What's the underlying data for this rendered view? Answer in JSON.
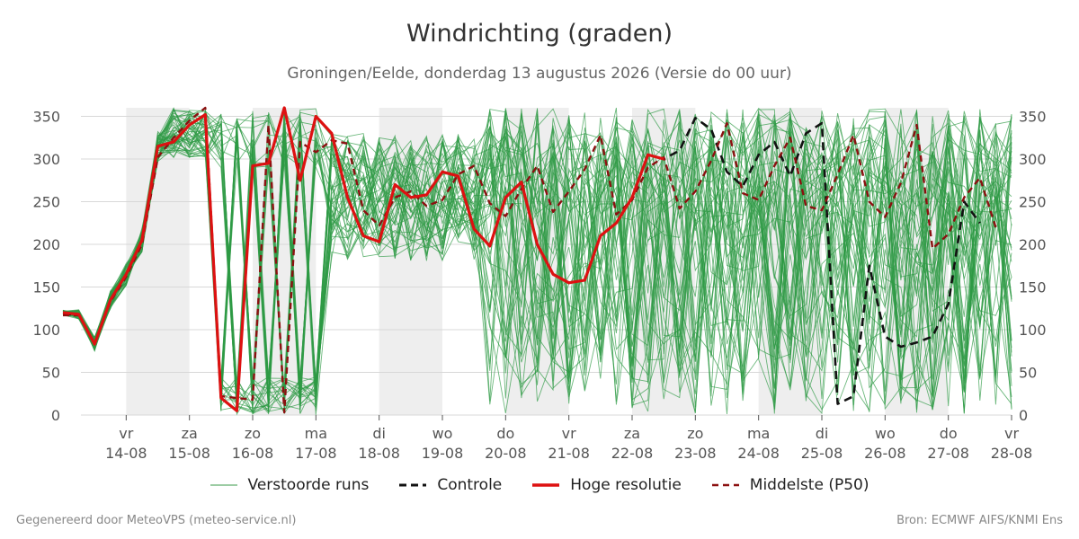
{
  "title": "Windrichting (graden)",
  "subtitle": "Groningen/Eelde, donderdag 13 augustus 2026 (Versie do 00 uur)",
  "footer_left": "Gegenereerd door MeteoVPS (meteo-service.nl)",
  "footer_right": "Bron: ECMWF AIFS/KNMI Ens",
  "legend": [
    {
      "label": "Verstoorde runs",
      "style": "thin-solid",
      "color": "#3a9a48"
    },
    {
      "label": "Controle",
      "style": "dashed",
      "color": "#111111"
    },
    {
      "label": "Hoge resolutie",
      "style": "thick-solid",
      "color": "#dd1111"
    },
    {
      "label": "Middelste (P50)",
      "style": "dashed",
      "color": "#8b1010"
    }
  ],
  "chart_data": {
    "type": "line",
    "xlabel": "",
    "ylabel": "",
    "ylim": [
      0,
      360
    ],
    "yticks": [
      0,
      50,
      100,
      150,
      200,
      250,
      300,
      350
    ],
    "grid": true,
    "legend_position": "bottom",
    "x_unit": "days from start of 13-08",
    "xlim": [
      0.0,
      15.0
    ],
    "day_ticks": [
      {
        "x": 1,
        "day": "vr",
        "date": "14-08"
      },
      {
        "x": 2,
        "day": "za",
        "date": "15-08"
      },
      {
        "x": 3,
        "day": "zo",
        "date": "16-08"
      },
      {
        "x": 4,
        "day": "ma",
        "date": "17-08"
      },
      {
        "x": 5,
        "day": "di",
        "date": "18-08"
      },
      {
        "x": 6,
        "day": "wo",
        "date": "19-08"
      },
      {
        "x": 7,
        "day": "do",
        "date": "20-08"
      },
      {
        "x": 8,
        "day": "vr",
        "date": "21-08"
      },
      {
        "x": 9,
        "day": "za",
        "date": "22-08"
      },
      {
        "x": 10,
        "day": "zo",
        "date": "23-08"
      },
      {
        "x": 11,
        "day": "ma",
        "date": "24-08"
      },
      {
        "x": 12,
        "day": "di",
        "date": "25-08"
      },
      {
        "x": 13,
        "day": "wo",
        "date": "26-08"
      },
      {
        "x": 14,
        "day": "do",
        "date": "27-08"
      },
      {
        "x": 15,
        "day": "vr",
        "date": "28-08"
      }
    ],
    "shaded_bands": [
      [
        1,
        2
      ],
      [
        3,
        4
      ],
      [
        5,
        6
      ],
      [
        7,
        8
      ],
      [
        9,
        10
      ],
      [
        11,
        12
      ],
      [
        13,
        14
      ]
    ],
    "series": [
      {
        "name": "Hoge resolutie",
        "color": "#dd1111",
        "points": [
          [
            0.0,
            120
          ],
          [
            0.25,
            118
          ],
          [
            0.5,
            83
          ],
          [
            0.75,
            135
          ],
          [
            1.0,
            165
          ],
          [
            1.25,
            205
          ],
          [
            1.5,
            315
          ],
          [
            1.75,
            320
          ],
          [
            2.0,
            340
          ],
          [
            2.25,
            352
          ],
          [
            2.5,
            20
          ],
          [
            2.75,
            5
          ],
          [
            3.0,
            292
          ],
          [
            3.25,
            295
          ],
          [
            3.5,
            360
          ],
          [
            3.75,
            275
          ],
          [
            4.0,
            350
          ],
          [
            4.25,
            330
          ],
          [
            4.5,
            255
          ],
          [
            4.75,
            210
          ],
          [
            5.0,
            203
          ],
          [
            5.25,
            270
          ],
          [
            5.5,
            255
          ],
          [
            5.75,
            258
          ],
          [
            6.0,
            285
          ],
          [
            6.25,
            280
          ],
          [
            6.5,
            218
          ],
          [
            6.75,
            198
          ],
          [
            7.0,
            255
          ],
          [
            7.25,
            273
          ],
          [
            7.5,
            200
          ],
          [
            7.75,
            165
          ],
          [
            8.0,
            155
          ],
          [
            8.25,
            158
          ],
          [
            8.5,
            210
          ],
          [
            8.75,
            225
          ],
          [
            9.0,
            255
          ],
          [
            9.25,
            305
          ],
          [
            9.5,
            300
          ]
        ]
      },
      {
        "name": "Controle",
        "color": "#111111",
        "points": [
          [
            0.0,
            118
          ],
          [
            0.25,
            118
          ],
          [
            0.5,
            83
          ],
          [
            0.75,
            135
          ],
          [
            1.0,
            165
          ],
          [
            1.25,
            205
          ],
          [
            1.5,
            315
          ],
          [
            1.75,
            320
          ],
          [
            2.0,
            340
          ],
          [
            2.25,
            352
          ],
          [
            2.5,
            20
          ],
          [
            2.75,
            5
          ],
          [
            3.0,
            292
          ],
          [
            3.25,
            295
          ],
          [
            3.5,
            360
          ],
          [
            3.75,
            275
          ],
          [
            4.0,
            350
          ],
          [
            4.25,
            330
          ],
          [
            4.5,
            255
          ],
          [
            4.75,
            210
          ],
          [
            5.0,
            203
          ],
          [
            5.25,
            270
          ],
          [
            5.5,
            255
          ],
          [
            5.75,
            258
          ],
          [
            6.0,
            285
          ],
          [
            6.25,
            280
          ],
          [
            6.5,
            218
          ],
          [
            6.75,
            198
          ],
          [
            7.0,
            255
          ],
          [
            7.25,
            273
          ],
          [
            7.5,
            200
          ],
          [
            7.75,
            165
          ],
          [
            8.0,
            155
          ],
          [
            8.25,
            158
          ],
          [
            8.5,
            210
          ],
          [
            8.75,
            225
          ],
          [
            9.0,
            255
          ],
          [
            9.25,
            305
          ],
          [
            9.5,
            300
          ],
          [
            9.75,
            310
          ],
          [
            10.0,
            348
          ],
          [
            10.25,
            335
          ],
          [
            10.5,
            285
          ],
          [
            10.75,
            268
          ],
          [
            11.0,
            305
          ],
          [
            11.25,
            320
          ],
          [
            11.5,
            280
          ],
          [
            11.75,
            330
          ],
          [
            12.0,
            342
          ],
          [
            12.25,
            13
          ],
          [
            12.5,
            22
          ],
          [
            12.75,
            175
          ],
          [
            13.0,
            92
          ],
          [
            13.25,
            80
          ],
          [
            13.5,
            85
          ],
          [
            13.75,
            92
          ],
          [
            14.0,
            130
          ],
          [
            14.25,
            250
          ],
          [
            14.5,
            225
          ]
        ]
      },
      {
        "name": "Middelste (P50)",
        "color": "#8b1010",
        "points": [
          [
            0.0,
            117
          ],
          [
            0.25,
            117
          ],
          [
            0.5,
            83
          ],
          [
            0.75,
            133
          ],
          [
            1.0,
            162
          ],
          [
            1.25,
            200
          ],
          [
            1.5,
            302
          ],
          [
            1.75,
            325
          ],
          [
            2.0,
            345
          ],
          [
            2.25,
            360
          ],
          [
            2.5,
            22
          ],
          [
            2.75,
            20
          ],
          [
            3.0,
            18
          ],
          [
            3.25,
            340
          ],
          [
            3.5,
            3
          ],
          [
            3.75,
            320
          ],
          [
            4.0,
            308
          ],
          [
            4.25,
            322
          ],
          [
            4.5,
            318
          ],
          [
            4.75,
            240
          ],
          [
            5.0,
            222
          ],
          [
            5.25,
            255
          ],
          [
            5.5,
            262
          ],
          [
            5.75,
            245
          ],
          [
            6.0,
            252
          ],
          [
            6.25,
            282
          ],
          [
            6.5,
            292
          ],
          [
            6.75,
            248
          ],
          [
            7.0,
            233
          ],
          [
            7.25,
            265
          ],
          [
            7.5,
            292
          ],
          [
            7.75,
            238
          ],
          [
            8.0,
            262
          ],
          [
            8.25,
            288
          ],
          [
            8.5,
            328
          ],
          [
            8.75,
            235
          ],
          [
            9.0,
            252
          ],
          [
            9.25,
            290
          ],
          [
            9.5,
            302
          ],
          [
            9.75,
            242
          ],
          [
            10.0,
            262
          ],
          [
            10.25,
            298
          ],
          [
            10.5,
            342
          ],
          [
            10.75,
            260
          ],
          [
            11.0,
            252
          ],
          [
            11.25,
            292
          ],
          [
            11.5,
            325
          ],
          [
            11.75,
            245
          ],
          [
            12.0,
            240
          ],
          [
            12.25,
            282
          ],
          [
            12.5,
            328
          ],
          [
            12.75,
            250
          ],
          [
            13.0,
            232
          ],
          [
            13.25,
            272
          ],
          [
            13.5,
            340
          ],
          [
            13.75,
            195
          ],
          [
            14.0,
            212
          ],
          [
            14.25,
            255
          ],
          [
            14.5,
            278
          ],
          [
            14.75,
            220
          ]
        ]
      }
    ]
  }
}
